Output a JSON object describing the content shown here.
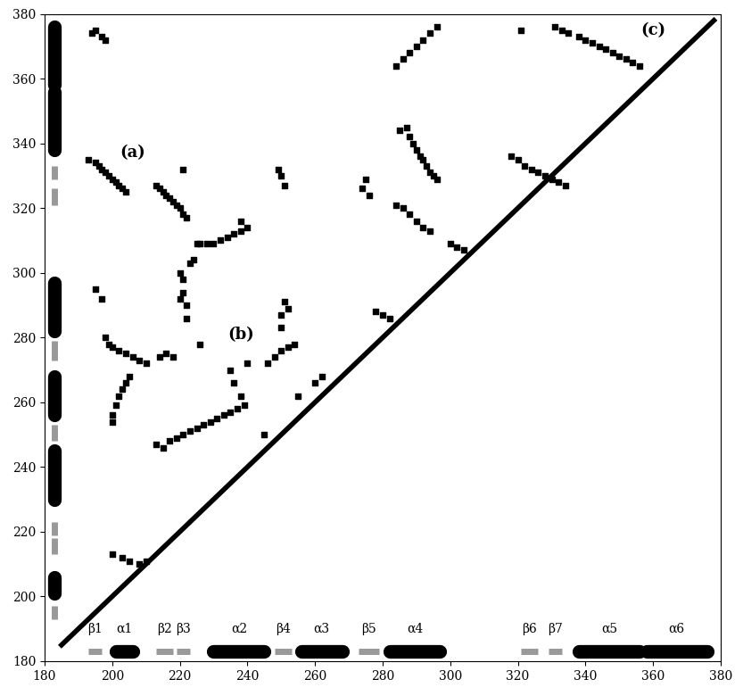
{
  "chart_data": {
    "type": "scatter",
    "xlim": [
      180,
      380
    ],
    "ylim": [
      180,
      380
    ],
    "xticks": [
      180,
      200,
      220,
      240,
      260,
      280,
      300,
      320,
      340,
      360,
      380
    ],
    "yticks": [
      180,
      200,
      220,
      240,
      260,
      280,
      300,
      320,
      340,
      360,
      380
    ],
    "grid": false,
    "series": [
      {
        "type": "line",
        "color": "#000000",
        "line_style": "solid",
        "x": [
          185,
          378
        ],
        "y": [
          185,
          378
        ]
      },
      {
        "type": "scatter",
        "color": "#000000",
        "marker": "square",
        "x": [
          193,
          195,
          196,
          197,
          198,
          199,
          200,
          201,
          202,
          203,
          204,
          194,
          195,
          197,
          198,
          213,
          214,
          215,
          216,
          217,
          218,
          219,
          220,
          221,
          222,
          221,
          225,
          228,
          220,
          221,
          221,
          222,
          222,
          223,
          224,
          220,
          226,
          230,
          232,
          234,
          236,
          238,
          240,
          238,
          249,
          250,
          251,
          195,
          197,
          198,
          199,
          200,
          202,
          204,
          206,
          208,
          210,
          200,
          201,
          202,
          203,
          204,
          205,
          200,
          213,
          215,
          217,
          219,
          221,
          223,
          225,
          227,
          229,
          231,
          233,
          235,
          237,
          239,
          214,
          216,
          218,
          226,
          246,
          248,
          250,
          252,
          254,
          250,
          251,
          250,
          252,
          235,
          236,
          238,
          240,
          285,
          287,
          288,
          289,
          290,
          291,
          292,
          293,
          294,
          295,
          296,
          284,
          286,
          288,
          290,
          292,
          294,
          284,
          286,
          288,
          290,
          292,
          294,
          296,
          274,
          275,
          276,
          318,
          320,
          322,
          324,
          326,
          328,
          330,
          332,
          334,
          321,
          331,
          333,
          335,
          338,
          340,
          342,
          344,
          346,
          348,
          350,
          352,
          354,
          356,
          200,
          203,
          205,
          208,
          210,
          278,
          280,
          282,
          300,
          302,
          304,
          245,
          255,
          260,
          262
        ],
        "y": [
          335,
          334,
          333,
          332,
          331,
          330,
          329,
          328,
          327,
          326,
          325,
          374,
          375,
          373,
          372,
          327,
          326,
          325,
          324,
          323,
          322,
          321,
          320,
          318,
          317,
          332,
          309,
          309,
          300,
          298,
          294,
          290,
          286,
          303,
          304,
          292,
          309,
          309,
          310,
          311,
          312,
          313,
          314,
          316,
          332,
          330,
          327,
          295,
          292,
          280,
          278,
          277,
          276,
          275,
          274,
          273,
          272,
          256,
          259,
          262,
          264,
          266,
          268,
          254,
          247,
          246,
          248,
          249,
          250,
          251,
          252,
          253,
          254,
          255,
          256,
          257,
          258,
          259,
          274,
          275,
          274,
          278,
          272,
          274,
          276,
          277,
          278,
          283,
          291,
          287,
          289,
          270,
          266,
          262,
          272,
          344,
          345,
          342,
          340,
          338,
          336,
          335,
          333,
          331,
          330,
          329,
          321,
          320,
          318,
          316,
          314,
          313,
          364,
          366,
          368,
          370,
          372,
          374,
          376,
          326,
          329,
          324,
          336,
          335,
          333,
          332,
          331,
          330,
          329,
          328,
          327,
          375,
          376,
          375,
          374,
          373,
          372,
          371,
          370,
          369,
          368,
          367,
          366,
          365,
          364,
          213,
          212,
          211,
          210,
          211,
          288,
          287,
          286,
          309,
          308,
          307,
          250,
          262,
          266,
          268
        ]
      }
    ],
    "secondary_structure": [
      {
        "label": "β1",
        "start": 193,
        "end": 197,
        "color": "#999999"
      },
      {
        "label": "α1",
        "start": 201,
        "end": 206,
        "color": "#000000"
      },
      {
        "label": "β2",
        "start": 213,
        "end": 218,
        "color": "#999999"
      },
      {
        "label": "β3",
        "start": 219,
        "end": 223,
        "color": "#999999"
      },
      {
        "label": "α2",
        "start": 230,
        "end": 245,
        "color": "#000000"
      },
      {
        "label": "β4",
        "start": 248,
        "end": 253,
        "color": "#999999"
      },
      {
        "label": "α3",
        "start": 256,
        "end": 268,
        "color": "#000000"
      },
      {
        "label": "β5",
        "start": 273,
        "end": 279,
        "color": "#999999"
      },
      {
        "label": "α4",
        "start": 282,
        "end": 297,
        "color": "#000000"
      },
      {
        "label": "β6",
        "start": 321,
        "end": 326,
        "color": "#999999"
      },
      {
        "label": "β7",
        "start": 329,
        "end": 333,
        "color": "#999999"
      },
      {
        "label": "α5",
        "start": 338,
        "end": 356,
        "color": "#000000"
      },
      {
        "label": "α6",
        "start": 358,
        "end": 376,
        "color": "#000000"
      }
    ],
    "annotations": [
      {
        "text": "(a)",
        "x": 206,
        "y": 337
      },
      {
        "text": "(b)",
        "x": 238,
        "y": 281
      },
      {
        "text": "(c)",
        "x": 360,
        "y": 375
      }
    ]
  }
}
